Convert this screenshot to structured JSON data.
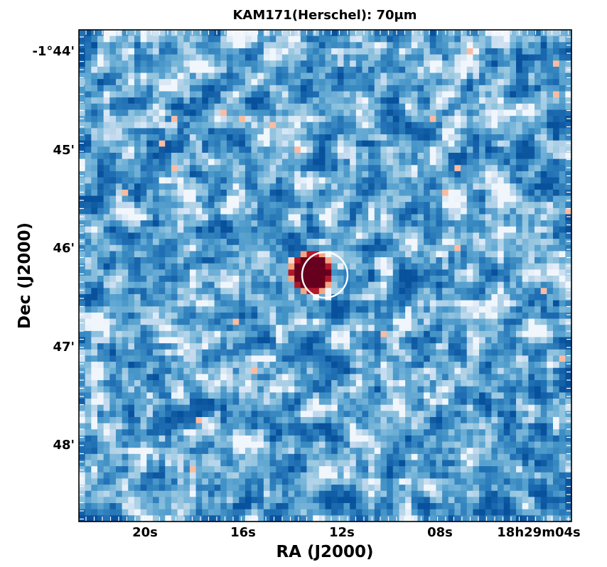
{
  "chart_data": {
    "type": "heatmap",
    "title": "KAM171(Herschel): 70μm",
    "xlabel": "RA (J2000)",
    "ylabel": "Dec (J2000)",
    "x_ticks": [
      "20s",
      "16s",
      "12s",
      "08s",
      "18h29m04s"
    ],
    "y_ticks": [
      "-1°44'",
      "45'",
      "46'",
      "47'",
      "48'"
    ],
    "colormap": "RdBu_r",
    "colors": {
      "background_low": "#08519c",
      "background_high": "#f7fbff",
      "source": "#67001f",
      "aperture": "#ffffff"
    },
    "source": {
      "label": "bright point source",
      "ra": "18h29m13.6s",
      "dec": "-1°46'19\""
    },
    "aperture_circle": {
      "ra": "18h29m12.9s",
      "dec": "-1°46'19\"",
      "radius_arcsec": 12
    },
    "grid": false
  }
}
